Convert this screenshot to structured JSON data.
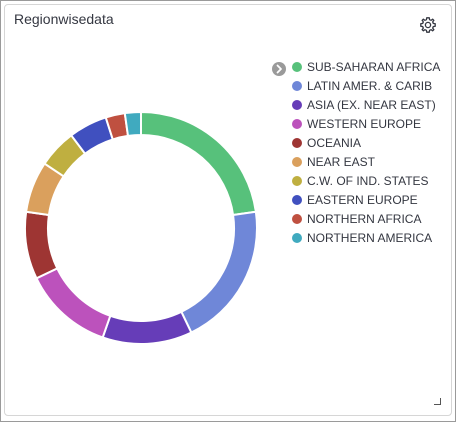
{
  "panel": {
    "title": "Regionwisedata",
    "settings_icon": "gear-icon",
    "legend_toggle_icon": "chevron-right-icon",
    "resize_icon": "resize-corner-icon"
  },
  "chart_data": {
    "type": "pie",
    "donut": true,
    "legend_position": "right",
    "categories": [
      "SUB-SAHARAN AFRICA",
      "LATIN AMER. & CARIB",
      "ASIA (EX. NEAR EAST)",
      "WESTERN EUROPE",
      "OCEANIA",
      "NEAR EAST",
      "C.W. OF IND. STATES",
      "EASTERN EUROPE",
      "NORTHERN AFRICA",
      "NORTHERN AMERICA"
    ],
    "values": [
      51,
      45,
      28,
      28,
      21,
      16,
      12,
      12,
      6,
      5
    ],
    "colors": [
      "#57c17b",
      "#6f87d8",
      "#663db8",
      "#bc52bc",
      "#9e3533",
      "#daa05d",
      "#bfaf40",
      "#4050bf",
      "#bf5040",
      "#40aabf"
    ]
  }
}
